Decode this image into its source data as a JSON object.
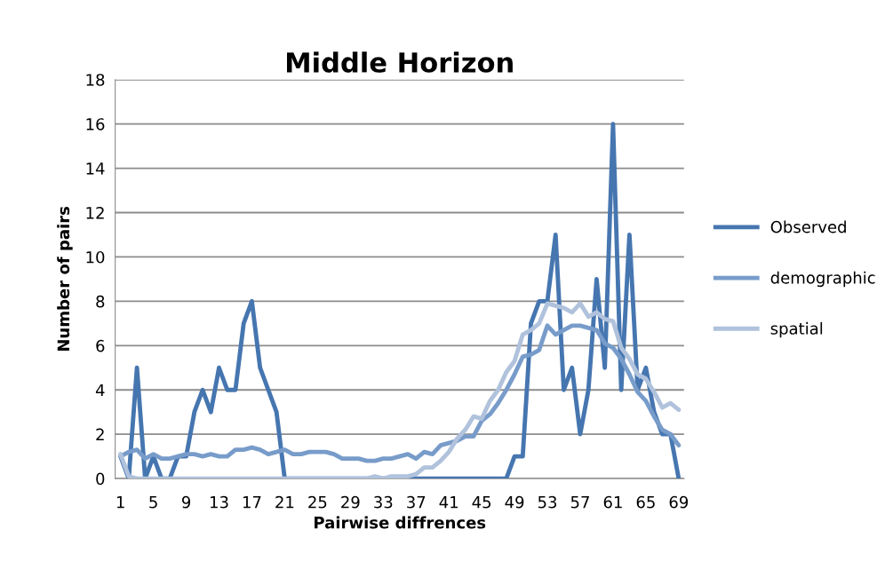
{
  "chart_data": {
    "type": "line",
    "title": "Middle Horizon",
    "xlabel": "Pairwise diffrences",
    "ylabel": "Number of pairs",
    "categories": [
      "1",
      null,
      null,
      null,
      "5",
      null,
      null,
      null,
      "9",
      null,
      null,
      null,
      "13",
      null,
      null,
      null,
      "17",
      null,
      null,
      null,
      "21",
      null,
      null,
      null,
      "25",
      null,
      null,
      null,
      "29",
      null,
      null,
      null,
      "33",
      null,
      null,
      null,
      "37",
      null,
      null,
      null,
      "41",
      null,
      null,
      null,
      "45",
      null,
      null,
      null,
      "49",
      null,
      null,
      null,
      "53",
      null,
      null,
      null,
      "57",
      null,
      null,
      null,
      "61",
      null,
      null,
      null,
      "65",
      null,
      null,
      null,
      "69"
    ],
    "series": [
      {
        "name": "Observed",
        "color": "#4676b0",
        "values": [
          1,
          0,
          5,
          0,
          1,
          0,
          0,
          1,
          1,
          3,
          4,
          3,
          5,
          4,
          4,
          7,
          8,
          5,
          4,
          3,
          0,
          0,
          0,
          0,
          0,
          0,
          0,
          0,
          0,
          0,
          0,
          0,
          0,
          0,
          0,
          0,
          0,
          0,
          0,
          0,
          0,
          0,
          0,
          0,
          0,
          0,
          0,
          0,
          1,
          1,
          7,
          8,
          8,
          11,
          4,
          5,
          2,
          4,
          9,
          5,
          16,
          4,
          11,
          4,
          5,
          3,
          2,
          2,
          0
        ]
      },
      {
        "name": "demographic",
        "color": "#789cca",
        "values": [
          1.0,
          1.2,
          1.3,
          0.9,
          1.1,
          0.9,
          0.9,
          1.0,
          1.1,
          1.1,
          1.0,
          1.1,
          1.0,
          1.0,
          1.3,
          1.3,
          1.4,
          1.3,
          1.1,
          1.2,
          1.3,
          1.1,
          1.1,
          1.2,
          1.2,
          1.2,
          1.1,
          0.9,
          0.9,
          0.9,
          0.8,
          0.8,
          0.9,
          0.9,
          1.0,
          1.1,
          0.9,
          1.2,
          1.1,
          1.5,
          1.6,
          1.7,
          1.9,
          1.9,
          2.6,
          2.9,
          3.4,
          4.0,
          4.7,
          5.5,
          5.6,
          5.8,
          6.9,
          6.5,
          6.7,
          6.9,
          6.9,
          6.8,
          6.7,
          6.1,
          5.9,
          5.4,
          4.7,
          3.9,
          3.5,
          2.8,
          2.2,
          2.0,
          1.5
        ]
      },
      {
        "name": "spatial",
        "color": "#b0c2dc",
        "values": [
          1.1,
          0.1,
          0,
          0,
          0,
          0,
          0,
          0,
          0,
          0,
          0,
          0,
          0,
          0,
          0,
          0,
          0,
          0,
          0,
          0,
          0,
          0,
          0,
          0,
          0,
          0,
          0,
          0,
          0,
          0,
          0,
          0.1,
          0,
          0.1,
          0.1,
          0.1,
          0.2,
          0.5,
          0.5,
          0.8,
          1.2,
          1.8,
          2.2,
          2.8,
          2.7,
          3.5,
          4.0,
          4.8,
          5.3,
          6.5,
          6.7,
          7.0,
          7.9,
          7.8,
          7.7,
          7.5,
          7.9,
          7.3,
          7.5,
          7.2,
          7.1,
          5.9,
          5.4,
          4.7,
          4.5,
          3.9,
          3.2,
          3.4,
          3.1
        ]
      }
    ],
    "ylim": [
      0,
      18
    ],
    "yticks": [
      0,
      2,
      4,
      6,
      8,
      10,
      12,
      14,
      16,
      18
    ],
    "grid": "y",
    "legend": "right",
    "marker": "none",
    "line_style": "solid"
  }
}
